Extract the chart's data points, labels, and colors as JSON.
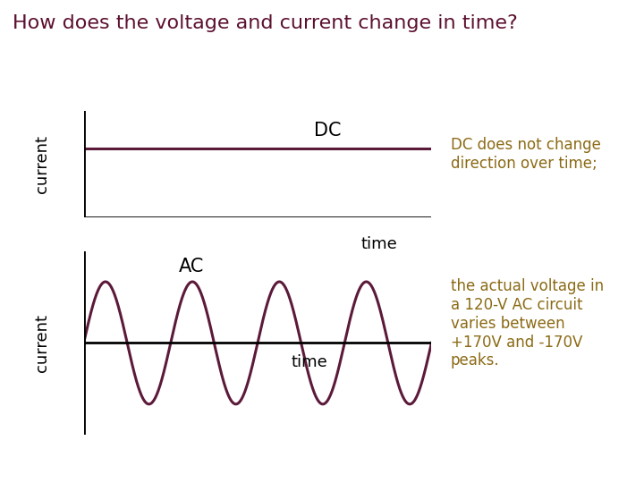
{
  "title": "How does the voltage and current change in time?",
  "title_color": "#5C1030",
  "title_fontsize": 16,
  "background_color": "#FFFFFF",
  "dc_label": "DC",
  "ac_label": "AC",
  "time_label": "time",
  "current_label": "current",
  "dc_annotation": "DC does not change\ndirection over time;",
  "ac_annotation": "the actual voltage in\na 120-V AC circuit\nvaries between\n+170V and -170V\npeaks.",
  "annotation_color": "#8B6A14",
  "line_color": "#5C1A3A",
  "axis_color": "#000000",
  "label_color": "#000000",
  "label_fontsize": 12,
  "annotation_fontsize": 12,
  "dc_cycles": 4,
  "ac_cycles": 4
}
